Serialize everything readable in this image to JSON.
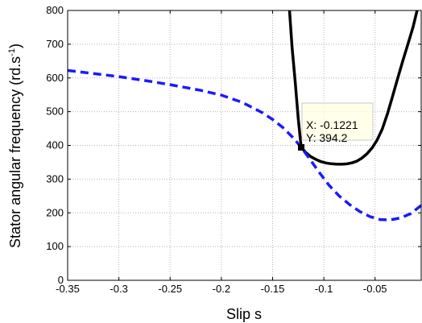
{
  "chart_data": {
    "type": "line",
    "xlabel": "Slip s",
    "ylabel": "Stator angular frequency (rd.s",
    "ylabel_superscript": "-1",
    "ylabel_close": ")",
    "xlim": [
      -0.35,
      -0.005
    ],
    "ylim": [
      0,
      800
    ],
    "grid": true,
    "x_ticks": [
      -0.35,
      -0.3,
      -0.25,
      -0.2,
      -0.15,
      -0.1,
      -0.05
    ],
    "x_tick_labels": [
      "-0.35",
      "-0.3",
      "-0.25",
      "-0.2",
      "-0.15",
      "-0.1",
      "-0.05"
    ],
    "y_ticks": [
      0,
      100,
      200,
      300,
      400,
      500,
      600,
      700,
      800
    ],
    "y_tick_labels": [
      "0",
      "100",
      "200",
      "300",
      "400",
      "500",
      "600",
      "700",
      "800"
    ],
    "series": [
      {
        "style": "solid",
        "color": "#000000",
        "x": [
          -0.1335,
          -0.131,
          -0.128,
          -0.125,
          -0.1221,
          -0.118,
          -0.113,
          -0.108,
          -0.103,
          -0.098,
          -0.093,
          -0.088,
          -0.083,
          -0.078,
          -0.073,
          -0.068,
          -0.063,
          -0.058,
          -0.053,
          -0.048,
          -0.043,
          -0.038,
          -0.033,
          -0.028,
          -0.023,
          -0.018,
          -0.013,
          -0.009
        ],
        "y": [
          800,
          690,
          590,
          480,
          394.2,
          380,
          367,
          359,
          352,
          348,
          345.5,
          344.5,
          344,
          345,
          348,
          353,
          362,
          375,
          392,
          416,
          448,
          493,
          545,
          598,
          650,
          700,
          750,
          800
        ]
      },
      {
        "style": "dashed",
        "color": "#1a1aff",
        "x": [
          -0.35,
          -0.33,
          -0.3,
          -0.27,
          -0.25,
          -0.22,
          -0.2,
          -0.18,
          -0.16,
          -0.15,
          -0.14,
          -0.13,
          -0.1221,
          -0.115,
          -0.105,
          -0.095,
          -0.085,
          -0.075,
          -0.065,
          -0.055,
          -0.045,
          -0.035,
          -0.025,
          -0.015,
          -0.005
        ],
        "y": [
          622,
          615,
          604,
          590,
          580,
          563,
          549,
          528,
          497,
          477,
          453,
          423,
          394.2,
          365,
          322,
          282,
          250,
          225,
          204,
          189,
          180,
          179,
          185,
          198,
          222
        ]
      }
    ],
    "datatip": {
      "x_label": "X: -0.1221",
      "y_label": "Y: 394.2",
      "x": -0.1221,
      "y": 394.2
    }
  }
}
